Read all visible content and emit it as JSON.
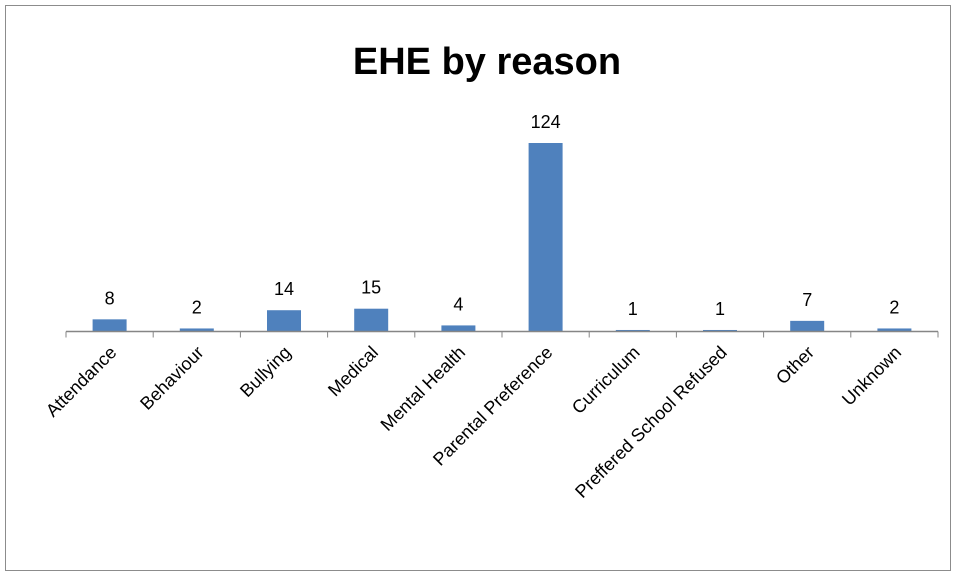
{
  "chart_data": {
    "type": "bar",
    "title": "EHE by reason",
    "categories": [
      "Attendance",
      "Behaviour",
      "Bullying",
      "Medical",
      "Mental Health",
      "Parental Preference",
      "Curriculum",
      "Preffered School Refused",
      "Other",
      "Unknown"
    ],
    "series": [
      {
        "values": [
          8,
          2,
          14,
          15,
          4,
          124,
          1,
          1,
          7,
          2
        ]
      }
    ],
    "xlabel": "",
    "ylabel": "",
    "ylim": [
      0,
      124
    ],
    "grid": false,
    "legend": "none",
    "data_labels": true,
    "colors": {
      "bar": "#4f81bd",
      "axis": "#868686"
    }
  }
}
